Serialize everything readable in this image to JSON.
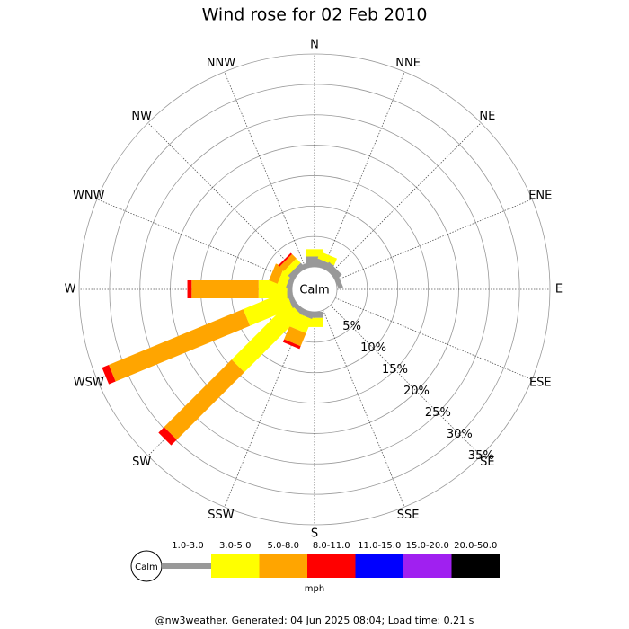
{
  "chart_data": {
    "type": "windrose",
    "title": "Wind rose for 02 Feb 2010",
    "calm_label": "Calm",
    "unit_label": "mph",
    "footer": "@nw3weather. Generated: 04 Jun 2025 08:04; Load time: 0.21 s",
    "categories": [
      "N",
      "NNE",
      "NE",
      "ENE",
      "E",
      "ESE",
      "SE",
      "SSE",
      "S",
      "SSW",
      "SW",
      "WSW",
      "W",
      "WNW",
      "NW",
      "NNW"
    ],
    "rlim": [
      0,
      35
    ],
    "rticks": [
      {
        "value": 5,
        "label": "5%"
      },
      {
        "value": 10,
        "label": "10%"
      },
      {
        "value": 15,
        "label": "15%"
      },
      {
        "value": 20,
        "label": "20%"
      },
      {
        "value": 25,
        "label": "25%"
      },
      {
        "value": 30,
        "label": "30%"
      },
      {
        "value": 35,
        "label": "35%"
      }
    ],
    "series": [
      {
        "name": "1.0-3.0",
        "color": "#999999",
        "values": [
          1.7,
          1.2,
          1.2,
          0.8,
          0,
          0,
          0,
          0,
          1.0,
          1.0,
          0.8,
          0.8,
          0.8,
          0.8,
          1.0,
          0.8
        ]
      },
      {
        "name": "3.0-5.0",
        "color": "#ffff00",
        "values": [
          1.2,
          1.2,
          0,
          0,
          0,
          0,
          0,
          0,
          1.5,
          2.5,
          13.3,
          7.6,
          4.7,
          1.5,
          1.0,
          0
        ]
      },
      {
        "name": "5.0-8.0",
        "color": "#ffa500",
        "values": [
          0,
          0,
          0,
          0,
          0,
          0,
          0,
          0,
          0,
          2.3,
          15.7,
          23.9,
          11,
          1.5,
          1.0,
          0
        ]
      },
      {
        "name": "8.0-11.0",
        "color": "#ff0000",
        "values": [
          0,
          0,
          0,
          0,
          0,
          0,
          0,
          0,
          0,
          0.5,
          1.3,
          1.2,
          0.7,
          0,
          0.3,
          0
        ]
      },
      {
        "name": "11.0-15.0",
        "color": "#0000ff",
        "values": [
          0,
          0,
          0,
          0,
          0,
          0,
          0,
          0,
          0,
          0,
          0,
          0,
          0,
          0,
          0,
          0
        ]
      },
      {
        "name": "15.0-20.0",
        "color": "#a020f0",
        "values": [
          0,
          0,
          0,
          0,
          0,
          0,
          0,
          0,
          0,
          0,
          0,
          0,
          0,
          0,
          0,
          0
        ]
      },
      {
        "name": "20.0-50.0",
        "color": "#000000",
        "values": [
          0,
          0,
          0,
          0,
          0,
          0,
          0,
          0,
          0,
          0,
          0,
          0,
          0,
          0,
          0,
          0
        ]
      }
    ]
  }
}
